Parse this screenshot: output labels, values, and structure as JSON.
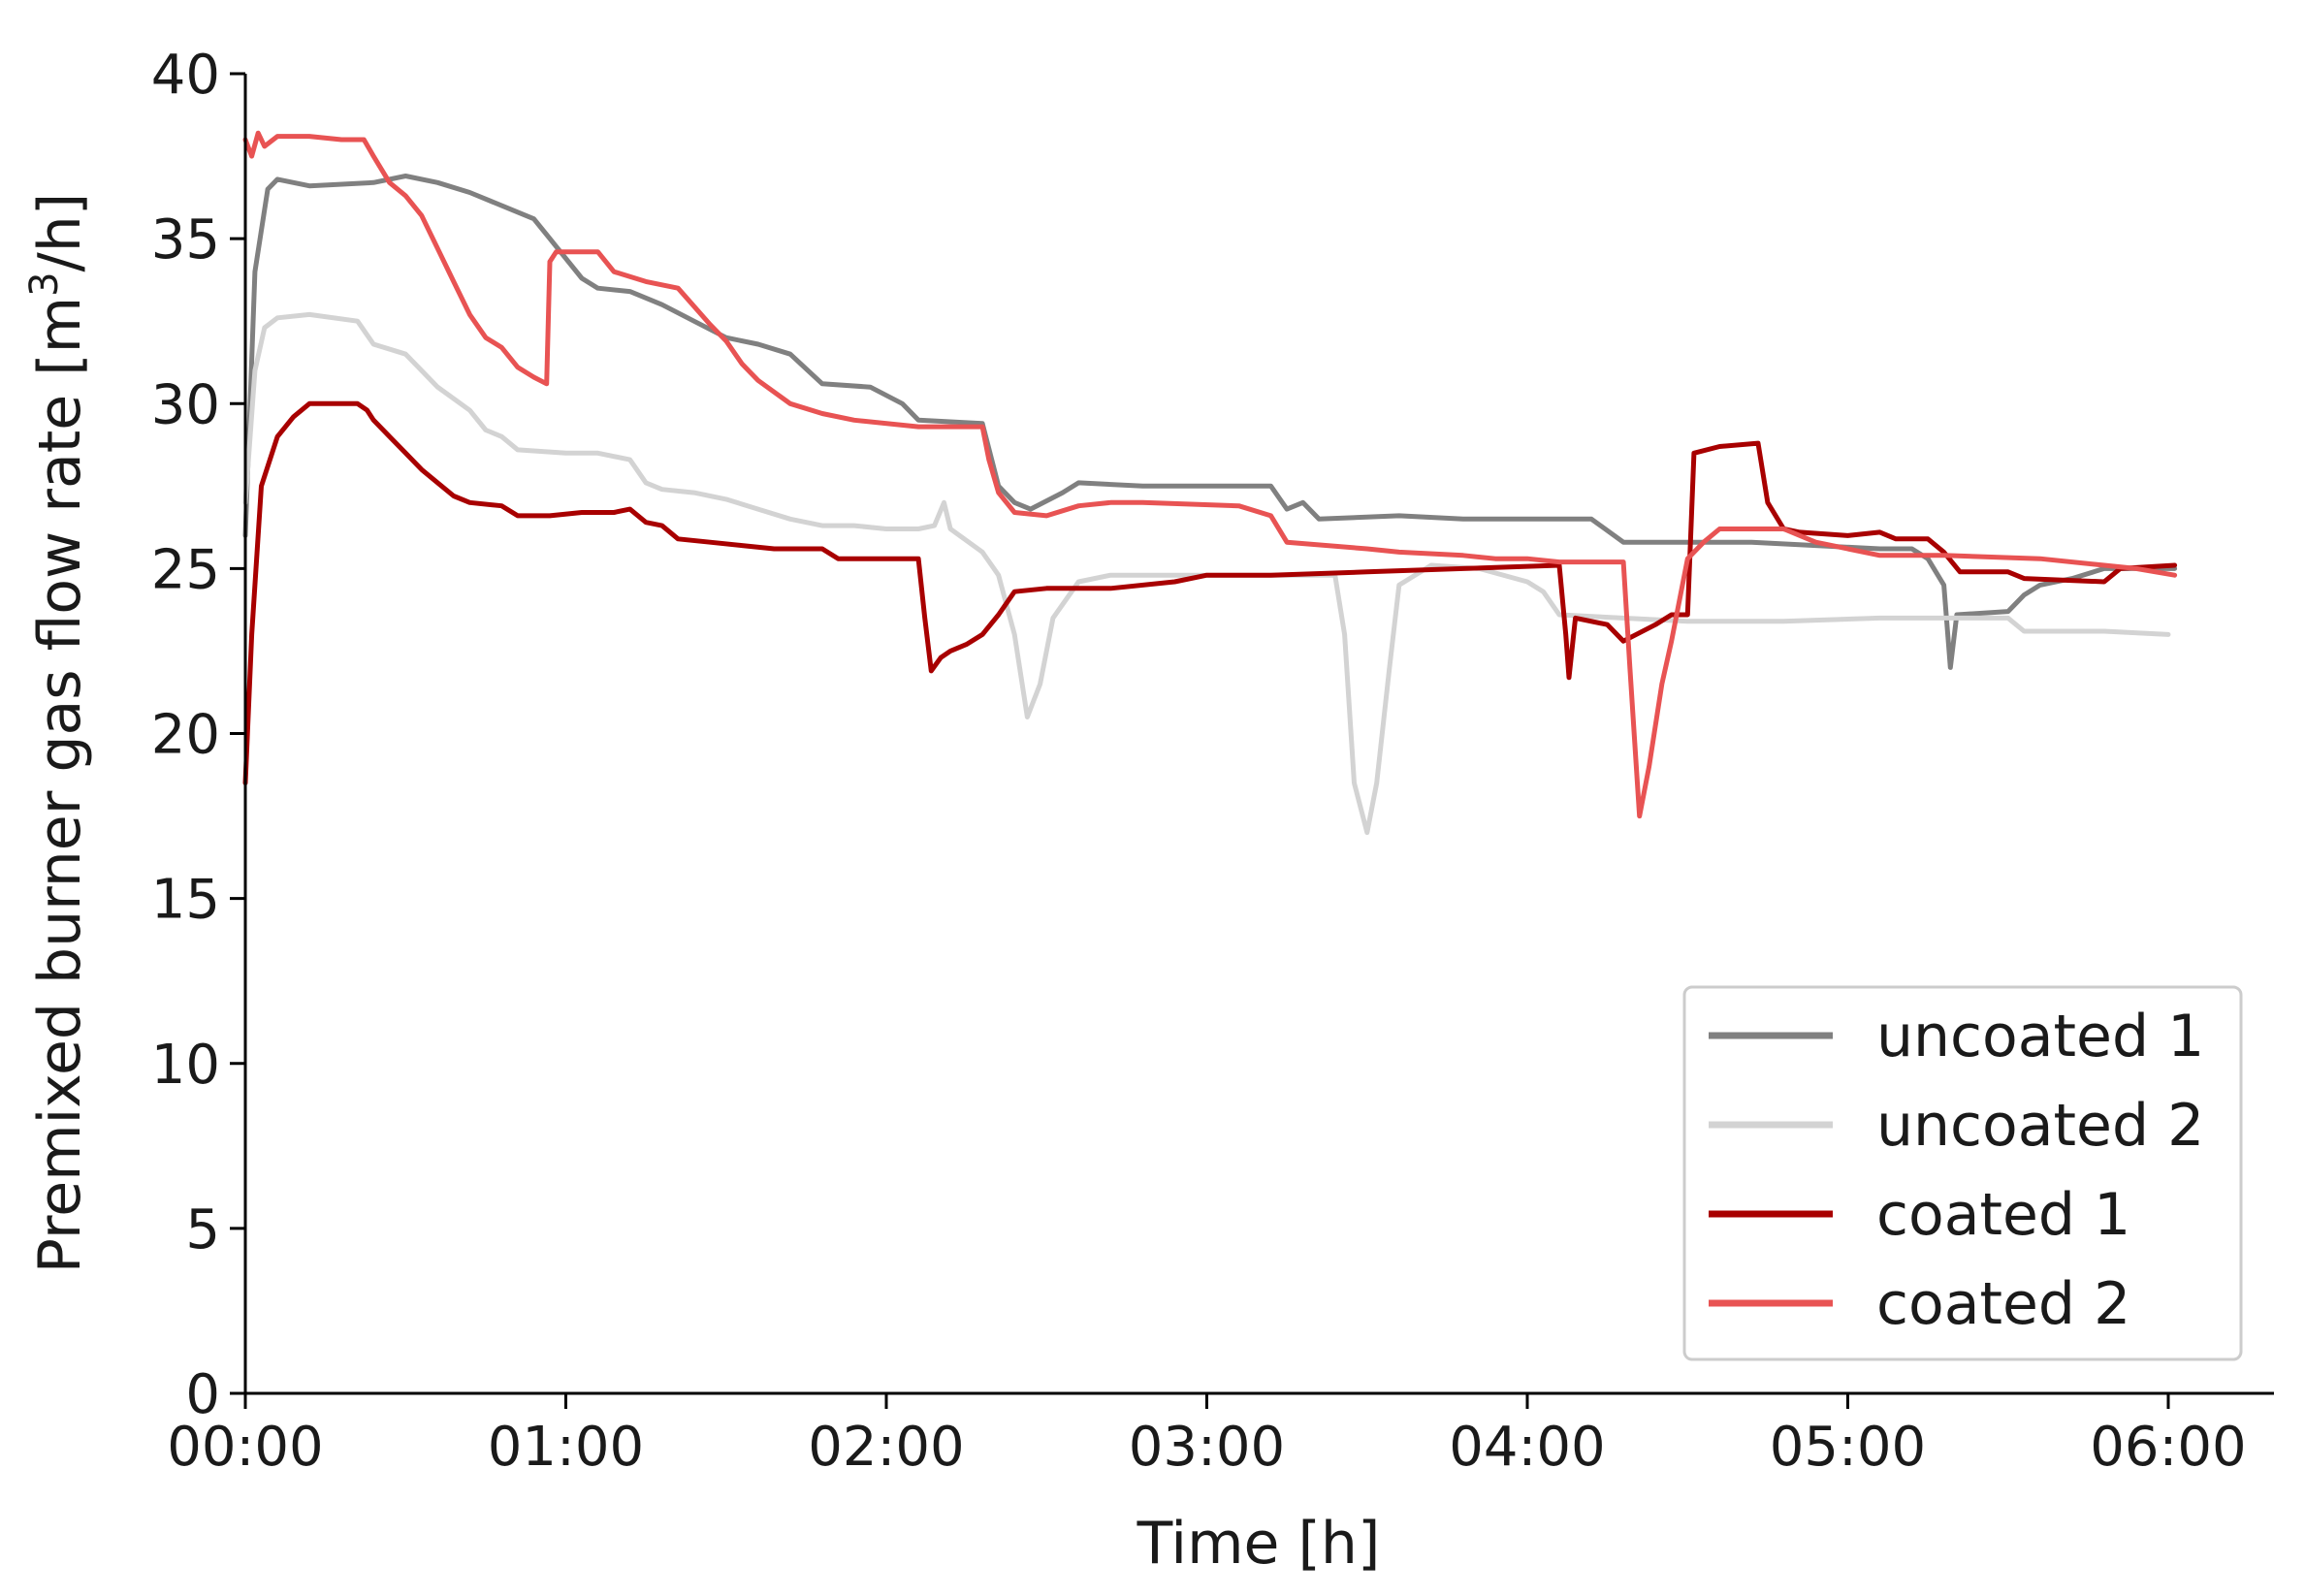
{
  "chart_data": {
    "type": "line",
    "title": "",
    "xlabel": "Time [h]",
    "ylabel_parts": {
      "before": "Premixed burner gas flow rate [m",
      "sup": "3",
      "after": "/h]"
    },
    "x_unit": "hours",
    "xlim": [
      0,
      6.33
    ],
    "ylim": [
      0,
      40
    ],
    "xticks": [
      0,
      1,
      2,
      3,
      4,
      5,
      6
    ],
    "xtick_labels": [
      "00:00",
      "01:00",
      "02:00",
      "03:00",
      "04:00",
      "05:00",
      "06:00"
    ],
    "yticks": [
      0,
      5,
      10,
      15,
      20,
      25,
      30,
      35,
      40
    ],
    "ytick_labels": [
      "0",
      "5",
      "10",
      "15",
      "20",
      "25",
      "30",
      "35",
      "40"
    ],
    "grid": false,
    "legend_position": "lower-right",
    "series": [
      {
        "name": "uncoated 1",
        "color": "#808080",
        "points": [
          [
            0,
            26
          ],
          [
            0.03,
            34
          ],
          [
            0.07,
            36.5
          ],
          [
            0.1,
            36.8
          ],
          [
            0.2,
            36.6
          ],
          [
            0.4,
            36.7
          ],
          [
            0.5,
            36.9
          ],
          [
            0.6,
            36.7
          ],
          [
            0.7,
            36.4
          ],
          [
            0.8,
            36
          ],
          [
            0.9,
            35.6
          ],
          [
            0.95,
            35
          ],
          [
            1.05,
            33.8
          ],
          [
            1.1,
            33.5
          ],
          [
            1.2,
            33.4
          ],
          [
            1.3,
            33
          ],
          [
            1.4,
            32.5
          ],
          [
            1.5,
            32
          ],
          [
            1.6,
            31.8
          ],
          [
            1.7,
            31.5
          ],
          [
            1.8,
            30.6
          ],
          [
            1.95,
            30.5
          ],
          [
            2.05,
            30
          ],
          [
            2.1,
            29.5
          ],
          [
            2.3,
            29.4
          ],
          [
            2.35,
            27.5
          ],
          [
            2.4,
            27
          ],
          [
            2.45,
            26.8
          ],
          [
            2.55,
            27.3
          ],
          [
            2.6,
            27.6
          ],
          [
            2.8,
            27.5
          ],
          [
            3.0,
            27.5
          ],
          [
            3.2,
            27.5
          ],
          [
            3.25,
            26.8
          ],
          [
            3.3,
            27
          ],
          [
            3.35,
            26.5
          ],
          [
            3.6,
            26.6
          ],
          [
            3.8,
            26.5
          ],
          [
            4.0,
            26.5
          ],
          [
            4.2,
            26.5
          ],
          [
            4.3,
            25.8
          ],
          [
            4.5,
            25.8
          ],
          [
            4.7,
            25.8
          ],
          [
            4.9,
            25.7
          ],
          [
            5.1,
            25.6
          ],
          [
            5.2,
            25.6
          ],
          [
            5.25,
            25.3
          ],
          [
            5.3,
            24.5
          ],
          [
            5.32,
            22
          ],
          [
            5.34,
            23.6
          ],
          [
            5.5,
            23.7
          ],
          [
            5.55,
            24.2
          ],
          [
            5.6,
            24.5
          ],
          [
            5.7,
            24.7
          ],
          [
            5.8,
            25
          ],
          [
            5.9,
            25
          ],
          [
            6.02,
            25
          ]
        ]
      },
      {
        "name": "uncoated 2",
        "color": "#d3d3d3",
        "points": [
          [
            0,
            27
          ],
          [
            0.03,
            31
          ],
          [
            0.06,
            32.3
          ],
          [
            0.1,
            32.6
          ],
          [
            0.2,
            32.7
          ],
          [
            0.35,
            32.5
          ],
          [
            0.4,
            31.8
          ],
          [
            0.5,
            31.5
          ],
          [
            0.6,
            30.5
          ],
          [
            0.7,
            29.8
          ],
          [
            0.75,
            29.2
          ],
          [
            0.8,
            29
          ],
          [
            0.85,
            28.6
          ],
          [
            1.0,
            28.5
          ],
          [
            1.1,
            28.5
          ],
          [
            1.2,
            28.3
          ],
          [
            1.25,
            27.6
          ],
          [
            1.3,
            27.4
          ],
          [
            1.4,
            27.3
          ],
          [
            1.5,
            27.1
          ],
          [
            1.6,
            26.8
          ],
          [
            1.7,
            26.5
          ],
          [
            1.8,
            26.3
          ],
          [
            1.9,
            26.3
          ],
          [
            2.0,
            26.2
          ],
          [
            2.1,
            26.2
          ],
          [
            2.15,
            26.3
          ],
          [
            2.18,
            27
          ],
          [
            2.2,
            26.2
          ],
          [
            2.3,
            25.5
          ],
          [
            2.35,
            24.8
          ],
          [
            2.4,
            23
          ],
          [
            2.44,
            20.5
          ],
          [
            2.48,
            21.5
          ],
          [
            2.52,
            23.5
          ],
          [
            2.6,
            24.6
          ],
          [
            2.7,
            24.8
          ],
          [
            3.0,
            24.8
          ],
          [
            3.3,
            24.8
          ],
          [
            3.4,
            24.8
          ],
          [
            3.43,
            23
          ],
          [
            3.46,
            18.5
          ],
          [
            3.5,
            17
          ],
          [
            3.53,
            18.5
          ],
          [
            3.57,
            22
          ],
          [
            3.6,
            24.5
          ],
          [
            3.7,
            25.1
          ],
          [
            3.85,
            25
          ],
          [
            4.0,
            24.6
          ],
          [
            4.05,
            24.3
          ],
          [
            4.1,
            23.6
          ],
          [
            4.5,
            23.4
          ],
          [
            4.8,
            23.4
          ],
          [
            5.1,
            23.5
          ],
          [
            5.3,
            23.5
          ],
          [
            5.5,
            23.5
          ],
          [
            5.55,
            23.1
          ],
          [
            5.8,
            23.1
          ],
          [
            6.0,
            23
          ]
        ]
      },
      {
        "name": "coated 1",
        "color": "#a80000",
        "points": [
          [
            0,
            18.5
          ],
          [
            0.02,
            23
          ],
          [
            0.05,
            27.5
          ],
          [
            0.1,
            29
          ],
          [
            0.15,
            29.6
          ],
          [
            0.2,
            30
          ],
          [
            0.3,
            30
          ],
          [
            0.35,
            30
          ],
          [
            0.38,
            29.8
          ],
          [
            0.4,
            29.5
          ],
          [
            0.45,
            29
          ],
          [
            0.5,
            28.5
          ],
          [
            0.55,
            28
          ],
          [
            0.6,
            27.6
          ],
          [
            0.65,
            27.2
          ],
          [
            0.7,
            27
          ],
          [
            0.8,
            26.9
          ],
          [
            0.85,
            26.6
          ],
          [
            0.95,
            26.6
          ],
          [
            1.05,
            26.7
          ],
          [
            1.15,
            26.7
          ],
          [
            1.2,
            26.8
          ],
          [
            1.25,
            26.4
          ],
          [
            1.3,
            26.3
          ],
          [
            1.35,
            25.9
          ],
          [
            1.45,
            25.8
          ],
          [
            1.55,
            25.7
          ],
          [
            1.65,
            25.6
          ],
          [
            1.8,
            25.6
          ],
          [
            1.85,
            25.3
          ],
          [
            2.0,
            25.3
          ],
          [
            2.1,
            25.3
          ],
          [
            2.12,
            23.5
          ],
          [
            2.14,
            21.9
          ],
          [
            2.17,
            22.3
          ],
          [
            2.2,
            22.5
          ],
          [
            2.25,
            22.7
          ],
          [
            2.3,
            23
          ],
          [
            2.35,
            23.6
          ],
          [
            2.4,
            24.3
          ],
          [
            2.5,
            24.4
          ],
          [
            2.7,
            24.4
          ],
          [
            2.9,
            24.6
          ],
          [
            3.0,
            24.8
          ],
          [
            3.2,
            24.8
          ],
          [
            3.5,
            24.9
          ],
          [
            3.8,
            25
          ],
          [
            4.1,
            25.1
          ],
          [
            4.12,
            23
          ],
          [
            4.13,
            21.7
          ],
          [
            4.15,
            23.5
          ],
          [
            4.25,
            23.3
          ],
          [
            4.3,
            22.8
          ],
          [
            4.4,
            23.3
          ],
          [
            4.45,
            23.6
          ],
          [
            4.5,
            23.6
          ],
          [
            4.52,
            28.5
          ],
          [
            4.6,
            28.7
          ],
          [
            4.72,
            28.8
          ],
          [
            4.75,
            27
          ],
          [
            4.8,
            26.2
          ],
          [
            4.85,
            26.1
          ],
          [
            5.0,
            26
          ],
          [
            5.1,
            26.1
          ],
          [
            5.15,
            25.9
          ],
          [
            5.25,
            25.9
          ],
          [
            5.3,
            25.5
          ],
          [
            5.35,
            24.9
          ],
          [
            5.5,
            24.9
          ],
          [
            5.55,
            24.7
          ],
          [
            5.8,
            24.6
          ],
          [
            5.85,
            25
          ],
          [
            6.02,
            25.1
          ]
        ]
      },
      {
        "name": "coated 2",
        "color": "#e85353",
        "points": [
          [
            0,
            38
          ],
          [
            0.02,
            37.5
          ],
          [
            0.04,
            38.2
          ],
          [
            0.06,
            37.8
          ],
          [
            0.1,
            38.1
          ],
          [
            0.2,
            38.1
          ],
          [
            0.3,
            38
          ],
          [
            0.37,
            38
          ],
          [
            0.4,
            37.5
          ],
          [
            0.45,
            36.7
          ],
          [
            0.5,
            36.3
          ],
          [
            0.55,
            35.7
          ],
          [
            0.6,
            34.7
          ],
          [
            0.65,
            33.7
          ],
          [
            0.7,
            32.7
          ],
          [
            0.75,
            32
          ],
          [
            0.8,
            31.7
          ],
          [
            0.85,
            31.1
          ],
          [
            0.9,
            30.8
          ],
          [
            0.94,
            30.6
          ],
          [
            0.95,
            34.3
          ],
          [
            0.97,
            34.6
          ],
          [
            1.1,
            34.6
          ],
          [
            1.15,
            34
          ],
          [
            1.25,
            33.7
          ],
          [
            1.35,
            33.5
          ],
          [
            1.45,
            32.4
          ],
          [
            1.5,
            31.9
          ],
          [
            1.55,
            31.2
          ],
          [
            1.6,
            30.7
          ],
          [
            1.7,
            30
          ],
          [
            1.8,
            29.7
          ],
          [
            1.9,
            29.5
          ],
          [
            2.1,
            29.3
          ],
          [
            2.2,
            29.3
          ],
          [
            2.3,
            29.3
          ],
          [
            2.32,
            28.3
          ],
          [
            2.35,
            27.3
          ],
          [
            2.4,
            26.7
          ],
          [
            2.5,
            26.6
          ],
          [
            2.6,
            26.9
          ],
          [
            2.7,
            27
          ],
          [
            2.8,
            27
          ],
          [
            3.1,
            26.9
          ],
          [
            3.2,
            26.6
          ],
          [
            3.25,
            25.8
          ],
          [
            3.5,
            25.6
          ],
          [
            3.6,
            25.5
          ],
          [
            3.8,
            25.4
          ],
          [
            3.9,
            25.3
          ],
          [
            4.0,
            25.3
          ],
          [
            4.1,
            25.2
          ],
          [
            4.2,
            25.2
          ],
          [
            4.3,
            25.2
          ],
          [
            4.32,
            22
          ],
          [
            4.35,
            17.5
          ],
          [
            4.38,
            19
          ],
          [
            4.42,
            21.5
          ],
          [
            4.45,
            22.8
          ],
          [
            4.5,
            25.3
          ],
          [
            4.55,
            25.8
          ],
          [
            4.6,
            26.2
          ],
          [
            4.8,
            26.2
          ],
          [
            4.9,
            25.8
          ],
          [
            5.1,
            25.4
          ],
          [
            5.3,
            25.4
          ],
          [
            5.6,
            25.3
          ],
          [
            5.8,
            25.1
          ],
          [
            5.9,
            25
          ],
          [
            6.02,
            24.8
          ]
        ]
      }
    ]
  }
}
